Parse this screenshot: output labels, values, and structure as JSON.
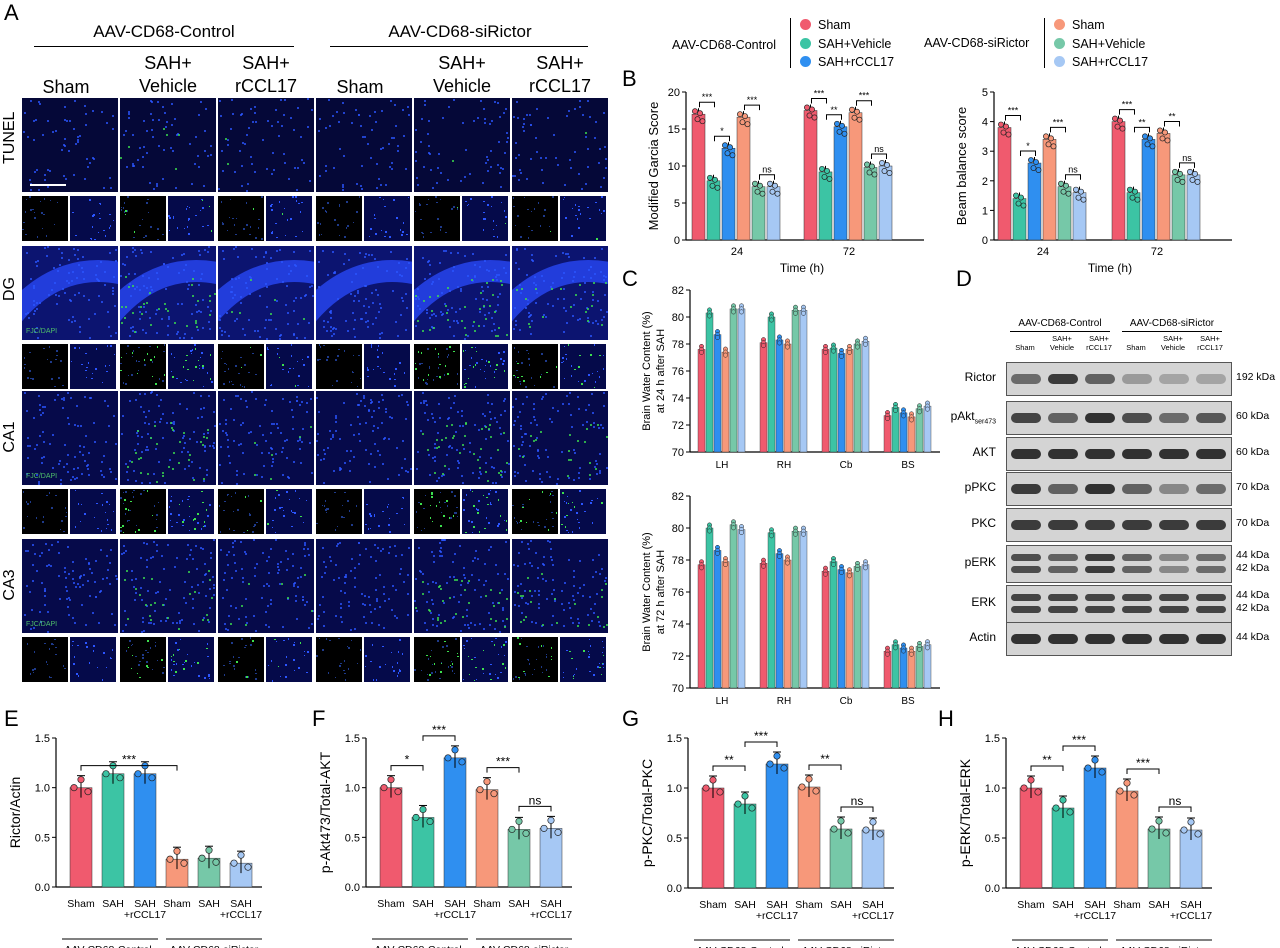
{
  "panels": {
    "A": "A",
    "B": "B",
    "C": "C",
    "D": "D",
    "E": "E",
    "F": "F",
    "G": "G",
    "H": "H"
  },
  "panelA": {
    "groups": [
      "AAV-CD68-Control",
      "AAV-CD68-siRictor"
    ],
    "columns": [
      [
        "Sham",
        ""
      ],
      [
        "SAH+",
        "Vehicle"
      ],
      [
        "SAH+",
        "rCCL17"
      ],
      [
        "Sham",
        ""
      ],
      [
        "SAH+",
        "Vehicle"
      ],
      [
        "SAH+",
        "rCCL17"
      ]
    ],
    "rows": [
      "TUNEL",
      "DG",
      "CA1",
      "CA3"
    ],
    "stain": "FJC/DAPI"
  },
  "colors": {
    "sham": "#f05a6e",
    "vehicle": "#3cc4a4",
    "rccl17": "#2f8ff0",
    "si_sham": "#f7987a",
    "si_vehicle": "#76c8a8",
    "si_rccl17": "#a6c8f4",
    "dapi": "#1a3df0",
    "fjc": "#38e04a"
  },
  "legend": {
    "left_title": "AAV-CD68-Control",
    "right_title": "AAV-CD68-siRictor",
    "items": [
      "Sham",
      "SAH+Vehicle",
      "SAH+rCCL17"
    ]
  },
  "chart_data": [
    {
      "id": "B-garcia",
      "type": "bar",
      "ylabel": "Modified Garcia Score",
      "xlabel": "Time (h)",
      "categories": [
        "24",
        "72"
      ],
      "ylim": [
        0,
        20
      ],
      "yticks": [
        0,
        5,
        10,
        15,
        20
      ],
      "series": [
        {
          "name": "Sham",
          "values": [
            17,
            17.5
          ]
        },
        {
          "name": "SAH+Vehicle",
          "values": [
            8,
            9.2
          ]
        },
        {
          "name": "SAH+rCCL17",
          "values": [
            12.4,
            15.3
          ]
        },
        {
          "name": "Sham",
          "values": [
            16.6,
            17.2
          ]
        },
        {
          "name": "SAH+Vehicle",
          "values": [
            7.2,
            9.8
          ]
        },
        {
          "name": "SAH+rCCL17",
          "values": [
            7.2,
            10
          ]
        }
      ],
      "sig": [
        [
          "***",
          "***"
        ],
        [
          "*",
          "**"
        ],
        [
          "***",
          "***"
        ],
        [
          "ns",
          "ns"
        ]
      ]
    },
    {
      "id": "B-beam",
      "type": "bar",
      "ylabel": "Beam balance score",
      "xlabel": "Time (h)",
      "categories": [
        "24",
        "72"
      ],
      "ylim": [
        0,
        5
      ],
      "yticks": [
        0,
        1,
        2,
        3,
        4,
        5
      ],
      "series": [
        {
          "name": "Sham",
          "values": [
            3.8,
            4
          ]
        },
        {
          "name": "SAH+Vehicle",
          "values": [
            1.4,
            1.6
          ]
        },
        {
          "name": "SAH+rCCL17",
          "values": [
            2.6,
            3.4
          ]
        },
        {
          "name": "Sham",
          "values": [
            3.4,
            3.6
          ]
        },
        {
          "name": "SAH+Vehicle",
          "values": [
            1.8,
            2.2
          ]
        },
        {
          "name": "SAH+rCCL17",
          "values": [
            1.6,
            2.2
          ]
        }
      ],
      "sig": [
        [
          "***",
          "***"
        ],
        [
          "*",
          "**"
        ],
        [
          "***",
          "**"
        ],
        [
          "ns",
          "ns"
        ]
      ]
    },
    {
      "id": "C-24h",
      "type": "bar",
      "ylabel": [
        "Brain Water Content (%)",
        "at 24 h after SAH"
      ],
      "categories": [
        "LH",
        "RH",
        "Cb",
        "BS"
      ],
      "ylim": [
        70,
        82
      ],
      "yticks": [
        70,
        72,
        74,
        76,
        78,
        80,
        82
      ],
      "series": [
        {
          "name": "Sham",
          "values": [
            77.6,
            78.1,
            77.6,
            72.7
          ]
        },
        {
          "name": "SAH+Vehicle",
          "values": [
            80.3,
            80.0,
            77.7,
            73.3
          ]
        },
        {
          "name": "SAH+rCCL17",
          "values": [
            78.7,
            78.3,
            77.3,
            72.9
          ]
        },
        {
          "name": "Sham",
          "values": [
            77.4,
            78.0,
            77.6,
            72.6
          ]
        },
        {
          "name": "SAH+Vehicle",
          "values": [
            80.6,
            80.5,
            78.0,
            73.2
          ]
        },
        {
          "name": "SAH+rCCL17",
          "values": [
            80.6,
            80.5,
            78.2,
            73.4
          ]
        }
      ]
    },
    {
      "id": "C-72h",
      "type": "bar",
      "ylabel": [
        "Brain Water Content (%)",
        "at 72 h after SAH"
      ],
      "categories": [
        "LH",
        "RH",
        "Cb",
        "BS"
      ],
      "ylim": [
        70,
        82
      ],
      "yticks": [
        70,
        72,
        74,
        76,
        78,
        80,
        82
      ],
      "series": [
        {
          "name": "Sham",
          "values": [
            77.7,
            77.8,
            77.3,
            72.3
          ]
        },
        {
          "name": "SAH+Vehicle",
          "values": [
            80.0,
            79.7,
            77.9,
            72.7
          ]
        },
        {
          "name": "SAH+rCCL17",
          "values": [
            78.6,
            78.4,
            77.4,
            72.5
          ]
        },
        {
          "name": "Sham",
          "values": [
            77.9,
            78.0,
            77.2,
            72.3
          ]
        },
        {
          "name": "SAH+Vehicle",
          "values": [
            80.2,
            79.8,
            77.6,
            72.6
          ]
        },
        {
          "name": "SAH+rCCL17",
          "values": [
            79.9,
            79.8,
            77.7,
            72.7
          ]
        }
      ]
    },
    {
      "id": "E",
      "type": "bar",
      "ylabel": "Rictor/Actin",
      "categories": [
        "Sham",
        "SAH",
        "SAH\n+rCCL17",
        "Sham",
        "SAH",
        "SAH\n+rCCL17"
      ],
      "values": [
        1.0,
        1.14,
        1.14,
        0.28,
        0.29,
        0.24
      ],
      "ylim": [
        0,
        1.5
      ],
      "yticks": [
        0,
        0.5,
        1.0,
        1.5
      ],
      "sig": [
        {
          "from": 0,
          "to": 3,
          "label": "***"
        }
      ]
    },
    {
      "id": "F",
      "type": "bar",
      "ylabel": "p-Akt473/Total-AKT",
      "categories": [
        "Sham",
        "SAH",
        "SAH\n+rCCL17",
        "Sham",
        "SAH",
        "SAH\n+rCCL17"
      ],
      "values": [
        1.0,
        0.7,
        1.3,
        0.98,
        0.58,
        0.59
      ],
      "ylim": [
        0,
        1.5
      ],
      "yticks": [
        0,
        0.5,
        1.0,
        1.5
      ],
      "sig": [
        {
          "from": 0,
          "to": 1,
          "label": "*"
        },
        {
          "from": 1,
          "to": 2,
          "label": "***"
        },
        {
          "from": 3,
          "to": 4,
          "label": "***"
        },
        {
          "from": 4,
          "to": 5,
          "label": "ns"
        }
      ]
    },
    {
      "id": "G",
      "type": "bar",
      "ylabel": "p-PKC/Total-PKC",
      "categories": [
        "Sham",
        "SAH",
        "SAH\n+rCCL17",
        "Sham",
        "SAH",
        "SAH\n+rCCL17"
      ],
      "values": [
        1.0,
        0.84,
        1.24,
        1.01,
        0.59,
        0.58
      ],
      "ylim": [
        0,
        1.5
      ],
      "yticks": [
        0,
        0.5,
        1.0,
        1.5
      ],
      "sig": [
        {
          "from": 0,
          "to": 1,
          "label": "**"
        },
        {
          "from": 1,
          "to": 2,
          "label": "***"
        },
        {
          "from": 3,
          "to": 4,
          "label": "**"
        },
        {
          "from": 4,
          "to": 5,
          "label": "ns"
        }
      ]
    },
    {
      "id": "H",
      "type": "bar",
      "ylabel": "p-ERK/Total-ERK",
      "categories": [
        "Sham",
        "SAH",
        "SAH\n+rCCL17",
        "Sham",
        "SAH",
        "SAH\n+rCCL17"
      ],
      "values": [
        1.0,
        0.8,
        1.2,
        0.97,
        0.59,
        0.58
      ],
      "ylim": [
        0,
        1.5
      ],
      "yticks": [
        0,
        0.5,
        1.0,
        1.5
      ],
      "sig": [
        {
          "from": 0,
          "to": 1,
          "label": "**"
        },
        {
          "from": 1,
          "to": 2,
          "label": "***"
        },
        {
          "from": 3,
          "to": 4,
          "label": "***"
        },
        {
          "from": 4,
          "to": 5,
          "label": "ns"
        }
      ]
    }
  ],
  "groupLabels": [
    "AAV-CD68-Control",
    "AAV-CD68-siRictor"
  ],
  "western": {
    "groups": [
      "AAV-CD68-Control",
      "AAV-CD68-siRictor"
    ],
    "lanes": [
      "Sham",
      "SAH+\nVehicle",
      "SAH+\nrCCL17",
      "Sham",
      "SAH+\nVehicle",
      "SAH+\nrCCL17"
    ],
    "blots": [
      {
        "name": "Rictor",
        "sub": "",
        "kda": [
          "192 kDa"
        ]
      },
      {
        "name": "pAkt",
        "sub": "ser473",
        "kda": [
          "60 kDa"
        ]
      },
      {
        "name": "AKT",
        "sub": "",
        "kda": [
          "60 kDa"
        ]
      },
      {
        "name": "pPKC",
        "sub": "",
        "kda": [
          "70 kDa"
        ]
      },
      {
        "name": "PKC",
        "sub": "",
        "kda": [
          "70 kDa"
        ]
      },
      {
        "name": "pERK",
        "sub": "",
        "kda": [
          "44 kDa",
          "42 kDa"
        ]
      },
      {
        "name": "ERK",
        "sub": "",
        "kda": [
          "44 kDa",
          "42 kDa"
        ]
      },
      {
        "name": "Actin",
        "sub": "",
        "kda": [
          "44 kDa"
        ]
      }
    ]
  }
}
